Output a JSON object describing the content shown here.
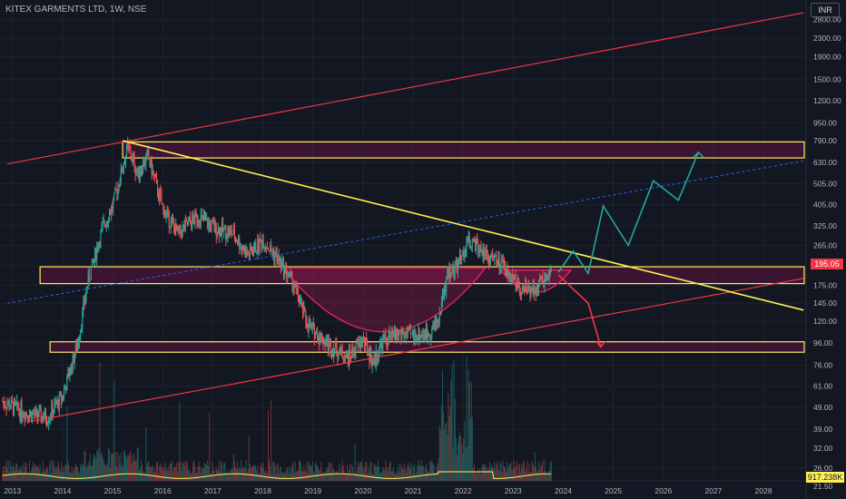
{
  "header": {
    "title": "KITEX GARMENTS LTD, 1W, NSE",
    "currency": "INR"
  },
  "colors": {
    "background": "#131722",
    "up": "#26a69a",
    "down": "#ef5350",
    "zone": "#ffee58",
    "channel": "#f23645",
    "trend": "#ffee58",
    "midline": "#2962ff",
    "cup": "#e91e63",
    "projection_up": "#26a69a",
    "projection_down": "#f23645"
  },
  "badges": {
    "last_price": "195.05",
    "volume": "917.238K"
  },
  "chart_data": {
    "type": "candlestick",
    "title": "KITEX GARMENTS LTD, 1W, NSE",
    "scale": "log",
    "ylim": [
      25,
      3300
    ],
    "xlim": [
      2012.75,
      2028.85
    ],
    "grid": true,
    "y_ticks": [
      "2800.00",
      "2300.00",
      "1900.00",
      "1500.00",
      "1200.00",
      "950.00",
      "790.00",
      "630.00",
      "505.00",
      "405.00",
      "325.00",
      "265.00",
      "215.00",
      "175.00",
      "145.00",
      "120.00",
      "96.00",
      "76.00",
      "61.00",
      "49.00",
      "39.00",
      "32.00",
      "26.00",
      "21.50"
    ],
    "x_ticks": [
      "2013",
      "2014",
      "2015",
      "2016",
      "2017",
      "2018",
      "2019",
      "2020",
      "2021",
      "2022",
      "2023",
      "2024",
      "2025",
      "2026",
      "2027",
      "2028"
    ],
    "price_path": [
      [
        2012.8,
        52
      ],
      [
        2013.3,
        46
      ],
      [
        2013.7,
        44
      ],
      [
        2014.0,
        55
      ],
      [
        2014.3,
        95
      ],
      [
        2014.5,
        180
      ],
      [
        2014.8,
        320
      ],
      [
        2015.0,
        400
      ],
      [
        2015.3,
        740
      ],
      [
        2015.5,
        560
      ],
      [
        2015.7,
        680
      ],
      [
        2016.0,
        390
      ],
      [
        2016.3,
        300
      ],
      [
        2016.7,
        360
      ],
      [
        2017.0,
        320
      ],
      [
        2017.4,
        300
      ],
      [
        2017.7,
        240
      ],
      [
        2018.0,
        280
      ],
      [
        2018.3,
        230
      ],
      [
        2018.6,
        180
      ],
      [
        2018.9,
        115
      ],
      [
        2019.3,
        95
      ],
      [
        2019.7,
        82
      ],
      [
        2020.0,
        100
      ],
      [
        2020.2,
        78
      ],
      [
        2020.4,
        98
      ],
      [
        2020.7,
        105
      ],
      [
        2021.0,
        104
      ],
      [
        2021.3,
        106
      ],
      [
        2021.5,
        122
      ],
      [
        2021.7,
        200
      ],
      [
        2021.9,
        215
      ],
      [
        2022.1,
        275
      ],
      [
        2022.3,
        260
      ],
      [
        2022.6,
        230
      ],
      [
        2022.9,
        200
      ],
      [
        2023.2,
        165
      ],
      [
        2023.5,
        175
      ],
      [
        2023.75,
        195
      ]
    ],
    "zones": [
      {
        "from": 660,
        "to": 780,
        "x_start": 2015.2
      },
      {
        "from": 178,
        "to": 212,
        "x_start": 2013.55
      },
      {
        "from": 87,
        "to": 97,
        "x_start": 2013.75
      }
    ],
    "lines": [
      {
        "kind": "channel-upper",
        "x": [
          2012.9,
          2028.8
        ],
        "y": [
          620,
          3000
        ]
      },
      {
        "kind": "channel-lower",
        "x": [
          2013.3,
          2028.8
        ],
        "y": [
          42,
          188
        ]
      },
      {
        "kind": "midline-dashed",
        "x": [
          2012.9,
          2028.8
        ],
        "y": [
          145,
          640
        ]
      },
      {
        "kind": "trendline",
        "x": [
          2015.2,
          2028.8
        ],
        "y": [
          790,
          135
        ]
      }
    ],
    "cups": [
      {
        "x0": 2018.4,
        "x1": 2022.45,
        "rim": 210,
        "bottom": 78
      },
      {
        "x0": 2022.75,
        "x1": 2024.15,
        "rim": 205,
        "bottom": 145
      }
    ],
    "projection_up": [
      [
        2023.9,
        200
      ],
      [
        2024.2,
        250
      ],
      [
        2024.5,
        198
      ],
      [
        2024.8,
        400
      ],
      [
        2025.3,
        265
      ],
      [
        2025.8,
        520
      ],
      [
        2026.3,
        425
      ],
      [
        2026.7,
        700
      ]
    ],
    "projection_down": [
      [
        2023.9,
        195
      ],
      [
        2024.3,
        160
      ],
      [
        2024.5,
        145
      ],
      [
        2024.75,
        92
      ]
    ],
    "volume": {
      "ylim": [
        0,
        9000000
      ],
      "last": 917238
    }
  }
}
